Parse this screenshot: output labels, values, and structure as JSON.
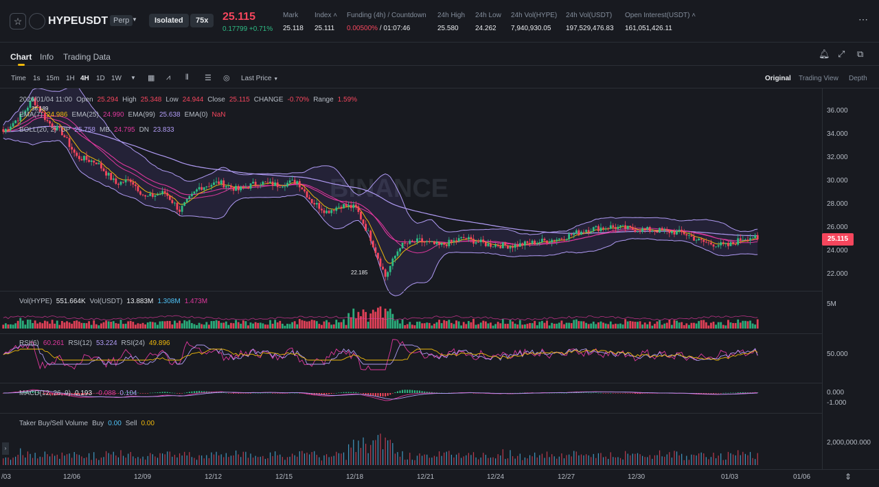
{
  "header": {
    "symbol": "HYPEUSDT",
    "perp_label": "Perp",
    "margin_mode": "Isolated",
    "leverage": "75x",
    "last_price": "25.115",
    "price_change": "0.17799 +0.71%",
    "stats": [
      {
        "label": "Mark",
        "value": "25.118"
      },
      {
        "label": "Index",
        "value": "25.111"
      },
      {
        "label": "Funding (4h) / Countdown",
        "value_a": "0.00500%",
        "value_b": " / 01:07:46"
      },
      {
        "label": "24h High",
        "value": "25.580"
      },
      {
        "label": "24h Low",
        "value": "24.262"
      },
      {
        "label": "24h Vol(HYPE)",
        "value": "7,940,930.05"
      },
      {
        "label": "24h Vol(USDT)",
        "value": "197,529,476.83"
      },
      {
        "label": "Open Interest(USDT)",
        "value": "161,051,426.11"
      }
    ]
  },
  "tabs": [
    "Chart",
    "Info",
    "Trading Data"
  ],
  "toolbar": {
    "time_label": "Time",
    "intervals": [
      "1s",
      "15m",
      "1H",
      "4H",
      "1D",
      "1W"
    ],
    "price_type": "Last Price",
    "views": [
      "Original",
      "Trading View",
      "Depth"
    ]
  },
  "legend": {
    "ohlc": {
      "date": "2026/01/04 11:00",
      "open_label": "Open",
      "open": "25.294",
      "high_label": "High",
      "high": "25.348",
      "low_label": "Low",
      "low": "24.944",
      "close_label": "Close",
      "close": "25.115",
      "change_label": "CHANGE",
      "change": "-0.70%",
      "range_label": "Range",
      "range": "1.59%"
    },
    "ema": {
      "ema7_label": "EMA(7)",
      "ema7": "24.986",
      "ema25_label": "EMA(25)",
      "ema25": "24.990",
      "ema99_label": "EMA(99)",
      "ema99": "25.638",
      "ema0_label": "EMA(0)",
      "ema0": "NaN"
    },
    "boll": {
      "label": "BOLL(20, 2)",
      "up_label": "UP",
      "up": "25.758",
      "mb_label": "MB",
      "mb": "24.795",
      "dn_label": "DN",
      "dn": "23.833"
    },
    "vol": {
      "hype_label": "Vol(HYPE)",
      "hype": "551.664K",
      "usdt_label": "Vol(USDT)",
      "usdt": "13.883M",
      "v1": "1.308M",
      "v2": "1.473M"
    },
    "rsi": {
      "rsi6_label": "RSI(6)",
      "rsi6": "60.261",
      "rsi12_label": "RSI(12)",
      "rsi12": "53.224",
      "rsi24_label": "RSI(24)",
      "rsi24": "49.896"
    },
    "macd": {
      "label": "MACD(12, 26, 9)",
      "v1": "0.193",
      "v2": "-0.088",
      "v3": "0.104"
    },
    "taker": {
      "label": "Taker Buy/Sell Volume",
      "buy_label": "Buy",
      "buy": "0.00",
      "sell_label": "Sell",
      "sell": "0.00"
    }
  },
  "watermark": "BINANCE",
  "price_axis": [
    "36.000",
    "34.000",
    "32.000",
    "30.000",
    "28.000",
    "26.000",
    "24.000",
    "22.000"
  ],
  "current_price_tag": "25.115",
  "vol_axis": "5M",
  "rsi_axis": "50.000",
  "macd_axis": [
    "0.000",
    "-1.000"
  ],
  "taker_axis": "2,000,000.000",
  "x_axis": [
    "/03",
    "12/06",
    "12/09",
    "12/12",
    "12/15",
    "12/18",
    "12/21",
    "12/24",
    "12/27",
    "12/30",
    "01/03",
    "01/06"
  ],
  "annotations": {
    "high": "36.189",
    "low": "22.185"
  },
  "chart_data": {
    "type": "candlestick",
    "interval": "4H",
    "anchors": [
      [
        0,
        33.6
      ],
      [
        8,
        35
      ],
      [
        12,
        36.19
      ],
      [
        18,
        34.4
      ],
      [
        24,
        33.5
      ],
      [
        30,
        31.6
      ],
      [
        38,
        31.2
      ],
      [
        46,
        29.5
      ],
      [
        52,
        29.8
      ],
      [
        58,
        28.4
      ],
      [
        66,
        28.8
      ],
      [
        72,
        27.4
      ],
      [
        80,
        29.2
      ],
      [
        88,
        29.6
      ],
      [
        96,
        29.0
      ],
      [
        104,
        29.6
      ],
      [
        112,
        29.4
      ],
      [
        120,
        29.7
      ],
      [
        126,
        28.1
      ],
      [
        132,
        27.3
      ],
      [
        138,
        27.8
      ],
      [
        144,
        27.6
      ],
      [
        150,
        25.2
      ],
      [
        156,
        22.19
      ],
      [
        162,
        24.6
      ],
      [
        170,
        25.0
      ],
      [
        178,
        24.6
      ],
      [
        188,
        25.2
      ],
      [
        198,
        24.7
      ],
      [
        208,
        24.6
      ],
      [
        218,
        24.9
      ],
      [
        228,
        25.2
      ],
      [
        238,
        25.9
      ],
      [
        248,
        26.1
      ],
      [
        258,
        25.9
      ],
      [
        268,
        25.8
      ],
      [
        278,
        25.6
      ],
      [
        284,
        25.0
      ],
      [
        288,
        24.8
      ],
      [
        296,
        24.6
      ],
      [
        302,
        25.2
      ],
      [
        306,
        25.3
      ],
      [
        308,
        25.115
      ]
    ],
    "price_range": [
      21,
      37
    ],
    "candles": 309
  }
}
